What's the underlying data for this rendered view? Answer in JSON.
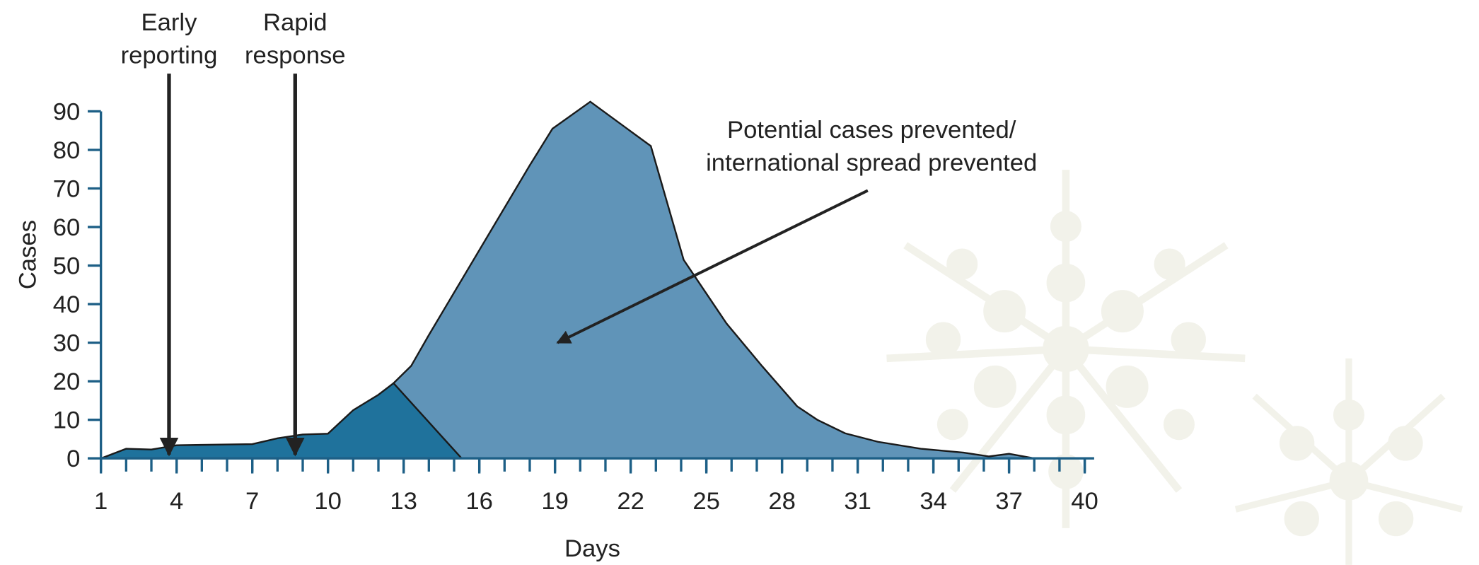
{
  "chart_data": {
    "type": "area",
    "x_label": "Days",
    "y_label": "Cases",
    "xlim": [
      1,
      40
    ],
    "ylim": [
      0,
      90
    ],
    "xticks": [
      1,
      4,
      7,
      10,
      13,
      16,
      19,
      22,
      25,
      28,
      31,
      34,
      37,
      40
    ],
    "xminor_ticks": [
      1,
      2,
      3,
      4,
      5,
      6,
      7,
      8,
      9,
      10,
      11,
      12,
      13,
      14,
      15,
      16,
      17,
      18,
      19,
      20,
      21,
      22,
      23,
      24,
      25,
      26,
      27,
      28,
      29,
      30,
      31,
      32,
      33,
      34,
      35,
      36,
      37,
      38,
      39,
      40
    ],
    "yticks": [
      0,
      10,
      20,
      30,
      40,
      50,
      60,
      70,
      80,
      90
    ],
    "series": [
      {
        "color": "#6094b8",
        "x": [
          12.6,
          13.3,
          14,
          15,
          16,
          17,
          18,
          18.9,
          20.4,
          22.8,
          24.1,
          25.8,
          27.2,
          28.6,
          29.4,
          30.5,
          31.8,
          33.5,
          35.2,
          36.2,
          37,
          38
        ],
        "values": [
          19.5,
          24,
          32,
          43,
          54,
          65,
          76,
          85.5,
          92.5,
          81,
          51.5,
          35,
          24,
          13.5,
          10,
          6.5,
          4.3,
          2.5,
          1.5,
          0.5,
          1.2,
          0
        ]
      },
      {
        "color": "#1f729c",
        "x": [
          1,
          2,
          3,
          4,
          5,
          6,
          7,
          8,
          9,
          10,
          11,
          12,
          12.6,
          15.3
        ],
        "values": [
          0,
          2.5,
          2.3,
          3.4,
          3.5,
          3.6,
          3.7,
          5.2,
          6.2,
          6.4,
          12.5,
          16.5,
          19.5,
          0
        ]
      }
    ],
    "annotations": [
      {
        "text": [
          "Early",
          "reporting"
        ],
        "x": 3.7
      },
      {
        "text": [
          "Rapid",
          "response"
        ],
        "x": 8.7
      },
      {
        "text": [
          "Potential cases prevented/",
          "international spread prevented"
        ],
        "x": 19.1,
        "y": 30
      }
    ]
  }
}
